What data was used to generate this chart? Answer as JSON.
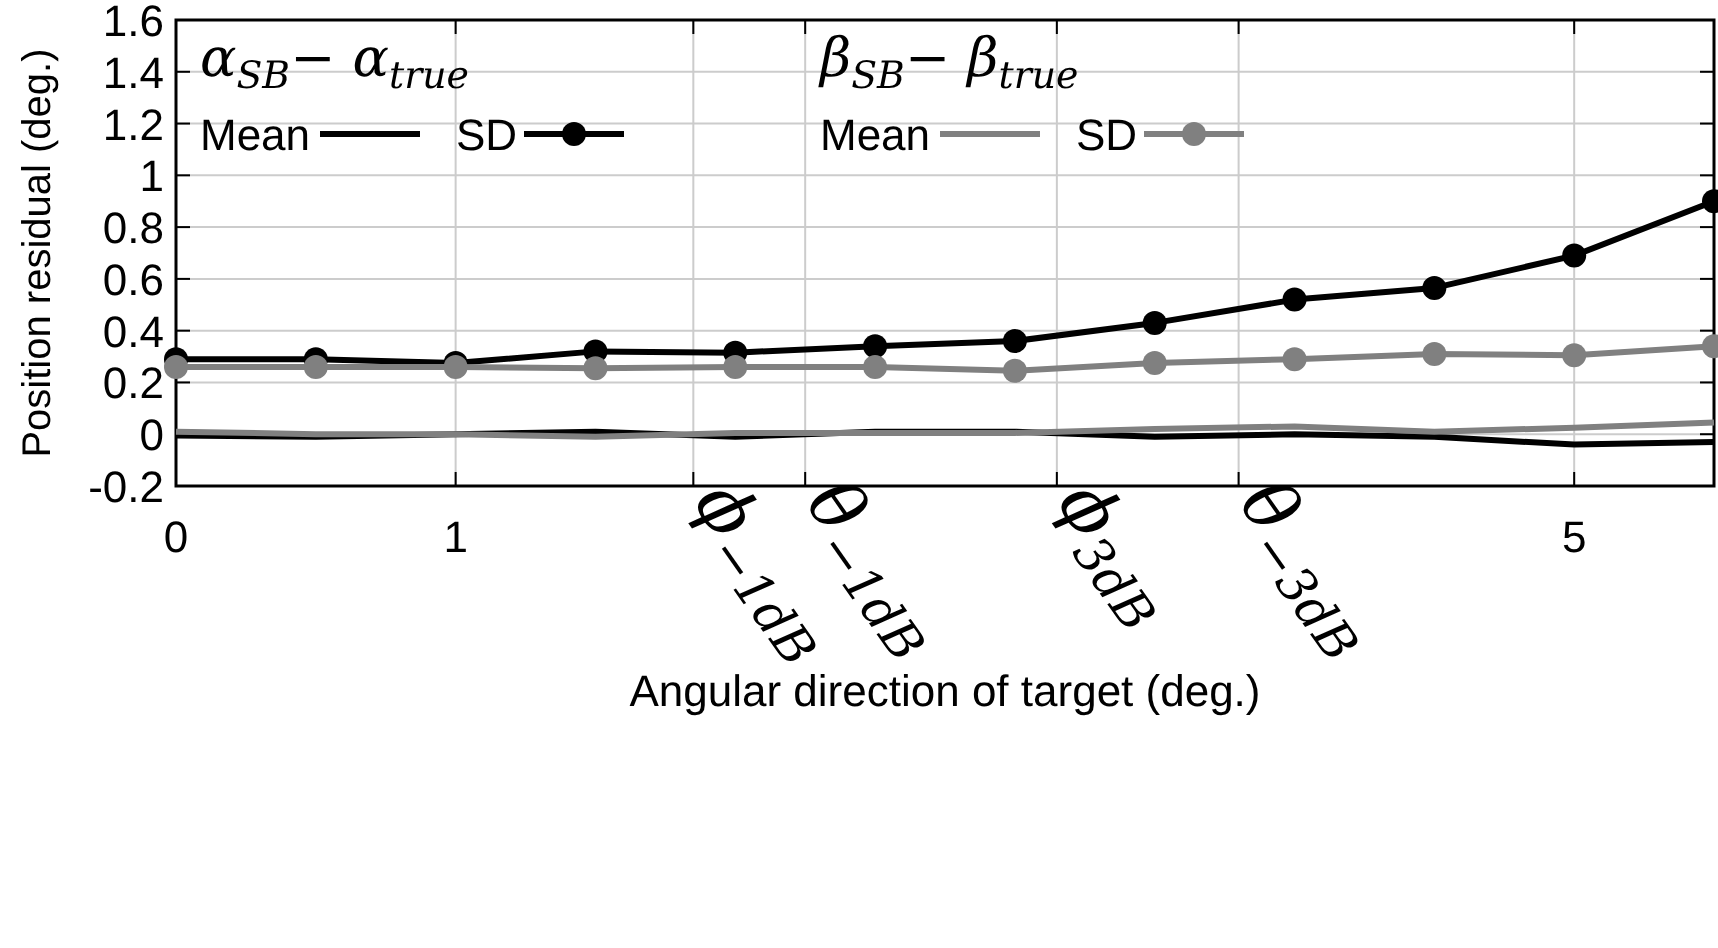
{
  "chart_data": {
    "type": "line",
    "xlabel": "Angular direction of target (deg.)",
    "ylabel": "Position residual (deg.)",
    "x": [
      0,
      0.5,
      1,
      1.5,
      2,
      2.5,
      3,
      3.5,
      4,
      4.5,
      5,
      5.5
    ],
    "series": [
      {
        "name": "Mean",
        "color": "#000000",
        "marker": "none",
        "values": [
          -0.005,
          -0.01,
          0,
          0.01,
          -0.01,
          0.01,
          0.01,
          -0.01,
          0,
          -0.01,
          -0.04,
          -0.03
        ]
      },
      {
        "name": "SD",
        "color": "#000000",
        "marker": "circle",
        "values": [
          0.29,
          0.29,
          0.275,
          0.32,
          0.315,
          0.34,
          0.36,
          0.43,
          0.52,
          0.565,
          0.69,
          0.9
        ]
      },
      {
        "name": "Mean",
        "color": "#808080",
        "marker": "none",
        "values": [
          0.01,
          0,
          0,
          -0.01,
          0.005,
          0.005,
          0.005,
          0.02,
          0.03,
          0.01,
          0.025,
          0.045
        ]
      },
      {
        "name": "SD",
        "color": "#808080",
        "marker": "circle",
        "values": [
          0.26,
          0.26,
          0.26,
          0.255,
          0.26,
          0.26,
          0.245,
          0.275,
          0.29,
          0.31,
          0.305,
          0.34
        ]
      }
    ],
    "annotations": [
      "α$_{SB}$− α$_{true}$",
      "β$_{SB}$− β$_{true}$"
    ],
    "xlim": [
      0,
      5.5
    ],
    "xticks": [
      0,
      1,
      5
    ],
    "ref_lines": [
      {
        "axis": "x",
        "value": 1.85,
        "label": "ϕ$_{−1dB}$",
        "color": "#cccccc"
      },
      {
        "axis": "x",
        "value": 2.25,
        "label": "θ$_{−1dB}$",
        "color": "#cccccc"
      },
      {
        "axis": "x",
        "value": 3.15,
        "label": "ϕ$_{3dB}$",
        "color": "#cccccc"
      },
      {
        "axis": "x",
        "value": 3.8,
        "label": "θ$_{−3dB}$",
        "color": "#cccccc"
      }
    ],
    "ylim": [
      -0.2,
      1.6
    ],
    "yticks": [
      -0.2,
      0,
      0.2,
      0.4,
      0.6,
      0.8,
      1,
      1.2,
      1.4,
      1.6
    ],
    "grid": true,
    "legend": "top left",
    "line_style": "solid"
  }
}
